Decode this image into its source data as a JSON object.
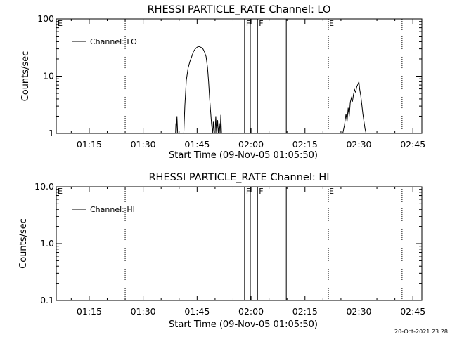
{
  "footer": {
    "timestamp": "20-Oct-2021 23:28"
  },
  "chart_data": [
    {
      "type": "line",
      "title": "RHESSI PARTICLE_RATE Channel: LO",
      "xlabel": "Start Time (09-Nov-05 01:05:50)",
      "ylabel": "Counts/sec",
      "yscale": "log",
      "ylim": [
        1,
        100
      ],
      "xlim_minutes": [
        65.83,
        167.5
      ],
      "x_ticks": [
        {
          "label": "01:15",
          "t": 75
        },
        {
          "label": "01:30",
          "t": 90
        },
        {
          "label": "01:45",
          "t": 105
        },
        {
          "label": "02:00",
          "t": 120
        },
        {
          "label": "02:15",
          "t": 135
        },
        {
          "label": "02:30",
          "t": 150
        },
        {
          "label": "02:45",
          "t": 165
        }
      ],
      "y_ticks": [
        {
          "label": "1",
          "v": 1
        },
        {
          "label": "10",
          "v": 10
        },
        {
          "label": "100",
          "v": 100
        }
      ],
      "legend": {
        "position": "top-left",
        "entries": [
          "Channel: LO"
        ]
      },
      "event_markers": {
        "dotted": [
          {
            "t": 85.0,
            "label": ""
          },
          {
            "t": 141.5,
            "label": "E"
          },
          {
            "t": 162.0,
            "label": ""
          }
        ],
        "solid": [
          {
            "t": 118.2,
            "label": "F"
          },
          {
            "t": 121.8,
            "label": "F"
          },
          {
            "t": 129.8,
            "label": ""
          }
        ],
        "edge_label": "E",
        "solid_extra": [
          {
            "t": 119.8
          }
        ]
      },
      "series": [
        {
          "name": "Channel: LO",
          "segments": [
            [
              [
                99.0,
                0.8
              ],
              [
                99.1,
                1.5
              ],
              [
                99.2,
                0.8
              ],
              [
                99.4,
                2.0
              ],
              [
                99.6,
                0.8
              ]
            ],
            [
              [
                101.3,
                0.8
              ],
              [
                101.6,
                3.0
              ],
              [
                102.0,
                8.5
              ],
              [
                102.5,
                14
              ],
              [
                103.0,
                18
              ],
              [
                103.5,
                22
              ],
              [
                104.0,
                27
              ],
              [
                104.5,
                30
              ],
              [
                105.0,
                32
              ],
              [
                105.5,
                33
              ],
              [
                106.0,
                32
              ],
              [
                106.5,
                31
              ],
              [
                107.0,
                27
              ],
              [
                107.5,
                22
              ],
              [
                107.9,
                14
              ],
              [
                108.2,
                8
              ],
              [
                108.5,
                4
              ],
              [
                108.8,
                2.2
              ],
              [
                109.0,
                1.5
              ],
              [
                109.3,
                1.0
              ],
              [
                109.5,
                1.6
              ],
              [
                109.7,
                0.8
              ]
            ],
            [
              [
                110.0,
                0.8
              ],
              [
                110.2,
                2.0
              ],
              [
                110.4,
                0.8
              ],
              [
                110.7,
                1.7
              ],
              [
                110.9,
                0.8
              ],
              [
                111.2,
                1.5
              ],
              [
                111.4,
                0.8
              ],
              [
                111.6,
                2.1
              ],
              [
                111.8,
                0.8
              ]
            ],
            [
              [
                145.5,
                0.8
              ],
              [
                146.0,
                1.4
              ],
              [
                146.4,
                2.2
              ],
              [
                146.7,
                1.6
              ],
              [
                147.0,
                2.8
              ],
              [
                147.3,
                2.0
              ],
              [
                147.6,
                3.5
              ],
              [
                147.9,
                4.2
              ],
              [
                148.2,
                3.6
              ],
              [
                148.5,
                4.8
              ],
              [
                148.8,
                5.8
              ],
              [
                149.1,
                5.2
              ],
              [
                149.4,
                6.5
              ],
              [
                149.7,
                7.2
              ],
              [
                150.0,
                8.0
              ],
              [
                150.2,
                6.0
              ],
              [
                150.5,
                4.6
              ],
              [
                150.8,
                3.2
              ],
              [
                151.1,
                2.2
              ],
              [
                151.4,
                1.6
              ],
              [
                151.7,
                1.2
              ],
              [
                152.0,
                0.8
              ]
            ]
          ]
        }
      ]
    },
    {
      "type": "line",
      "title": "RHESSI PARTICLE_RATE Channel: HI",
      "xlabel": "Start Time (09-Nov-05 01:05:50)",
      "ylabel": "Counts/sec",
      "yscale": "log",
      "ylim": [
        0.1,
        10
      ],
      "xlim_minutes": [
        65.83,
        167.5
      ],
      "x_ticks": [
        {
          "label": "01:15",
          "t": 75
        },
        {
          "label": "01:30",
          "t": 90
        },
        {
          "label": "01:45",
          "t": 105
        },
        {
          "label": "02:00",
          "t": 120
        },
        {
          "label": "02:15",
          "t": 135
        },
        {
          "label": "02:30",
          "t": 150
        },
        {
          "label": "02:45",
          "t": 165
        }
      ],
      "y_ticks": [
        {
          "label": "0.1",
          "v": 0.1
        },
        {
          "label": "1.0",
          "v": 1.0
        },
        {
          "label": "10.0",
          "v": 10.0
        }
      ],
      "legend": {
        "position": "top-left",
        "entries": [
          "Channel: HI"
        ]
      },
      "event_markers": {
        "dotted": [
          {
            "t": 85.0,
            "label": ""
          },
          {
            "t": 141.5,
            "label": "E"
          },
          {
            "t": 162.0,
            "label": ""
          }
        ],
        "solid": [
          {
            "t": 118.2,
            "label": "F"
          },
          {
            "t": 121.8,
            "label": "F"
          },
          {
            "t": 129.8,
            "label": ""
          }
        ],
        "edge_label": "E",
        "solid_extra": [
          {
            "t": 119.8
          }
        ]
      },
      "series": [
        {
          "name": "Channel: HI",
          "segments": []
        }
      ]
    }
  ]
}
